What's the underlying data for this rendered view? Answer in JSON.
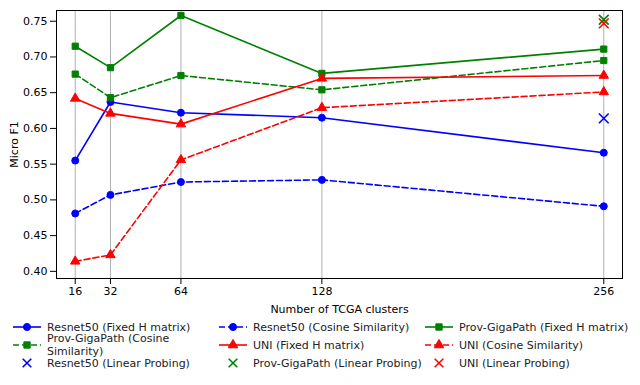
{
  "chart_data": {
    "type": "line",
    "x_label": "Number of TCGA clusters",
    "y_label": "Micro F1",
    "x": [
      16,
      32,
      64,
      128,
      256
    ],
    "xlim": [
      7.5,
      264.5
    ],
    "xticks": [
      16,
      32,
      64,
      128,
      256
    ],
    "ylim": [
      0.39,
      0.765
    ],
    "yticks": [
      {
        "value": 0.4,
        "label": "0.40"
      },
      0.45,
      {
        "value": 0.5,
        "label": "0.50"
      },
      0.55,
      {
        "value": 0.6,
        "label": "0.60"
      },
      0.65,
      {
        "value": 0.7,
        "label": "0.70"
      },
      0.75
    ],
    "grid": "x",
    "legend": "lower right",
    "series": [
      {
        "name": "Resnet50 (Fixed H matrix)",
        "color": "#0000ff",
        "marker": "circle",
        "line_style": "solid",
        "values": [
          0.555,
          0.637,
          0.622,
          0.615,
          0.566
        ]
      },
      {
        "name": "Resnet50 (Cosine Similarity)",
        "color": "#0000ff",
        "marker": "circle",
        "line_style": "dashed",
        "values": [
          0.481,
          0.507,
          0.525,
          0.528,
          0.491
        ]
      },
      {
        "name": "Prov-GigaPath (Fixed H matrix)",
        "color": "#008000",
        "marker": "square",
        "line_style": "solid",
        "values": [
          0.715,
          0.685,
          0.758,
          0.677,
          0.711
        ]
      },
      {
        "name": "Prov-GigaPath (Cosine Similarity)",
        "color": "#008000",
        "marker": "square",
        "line_style": "dashed",
        "values": [
          0.676,
          0.643,
          0.674,
          0.654,
          0.695
        ]
      },
      {
        "name": "UNI (Fixed H matrix)",
        "color": "#ff0000",
        "marker": "triangle",
        "line_style": "solid",
        "values": [
          0.642,
          0.621,
          0.606,
          0.67,
          0.674
        ]
      },
      {
        "name": "UNI (Cosine Similarity)",
        "color": "#ff0000",
        "marker": "triangle",
        "line_style": "dashed",
        "values": [
          0.414,
          0.423,
          0.556,
          0.629,
          0.651
        ]
      },
      {
        "name": "Resnet50 (Linear Probing)",
        "type": "scatter",
        "color": "#0000ff",
        "marker": "x",
        "values": [
          null,
          null,
          null,
          null,
          0.614
        ]
      },
      {
        "name": "Prov-GigaPath (Linear Probing)",
        "type": "scatter",
        "color": "#008000",
        "marker": "x",
        "values": [
          null,
          null,
          null,
          null,
          0.752
        ]
      },
      {
        "name": "UNI (Linear Probing)",
        "type": "scatter",
        "color": "#ff0000",
        "marker": "x",
        "values": [
          null,
          null,
          null,
          null,
          0.747
        ]
      }
    ]
  }
}
